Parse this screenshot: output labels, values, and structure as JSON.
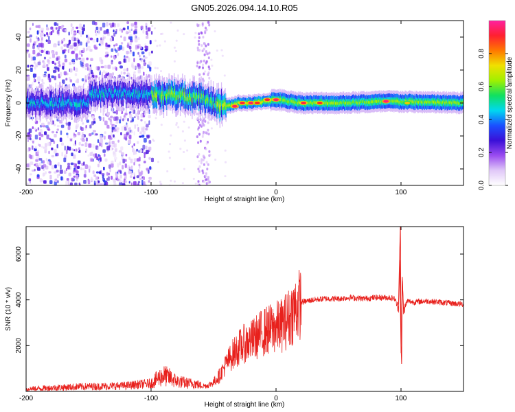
{
  "figure_title": "GN05.2026.094.14.10.R05",
  "colors": {
    "snr_line": "#e8201c",
    "ridge_low": "#3a10d8",
    "ridge_high": "#1fd890"
  },
  "chart_data": [
    {
      "type": "heatmap",
      "name": "spectrogram",
      "xlabel": "Height of straight line (km)",
      "ylabel": "Frequency (Hz)",
      "xlim": [
        -200,
        150
      ],
      "ylim": [
        -50,
        50
      ],
      "xticks": [
        -200,
        -100,
        0,
        100
      ],
      "yticks": [
        -40,
        -20,
        0,
        20,
        40
      ],
      "colorbar": {
        "label": "Normalized spectral amplitude",
        "range": [
          0.0,
          1.0
        ],
        "ticks": [
          0.0,
          0.2,
          0.4,
          0.6,
          0.8
        ],
        "tick_labels": [
          "0.0",
          "0.2",
          "0.4",
          "0.6",
          "0.8"
        ],
        "stops": [
          "#ffffff",
          "#e0c8f8",
          "#9a4cf0",
          "#3a10d8",
          "#1a50ff",
          "#00d8f0",
          "#10e060",
          "#a0f000",
          "#f0e000",
          "#ff7800",
          "#ff2030",
          "#ff20a0"
        ]
      },
      "ridge_center": [
        {
          "x": -150,
          "f": 6
        },
        {
          "x": -120,
          "f": 6
        },
        {
          "x": -100,
          "f": 5
        },
        {
          "x": -80,
          "f": 5
        },
        {
          "x": -60,
          "f": 3
        },
        {
          "x": -50,
          "f": 0
        },
        {
          "x": -40,
          "f": -2
        },
        {
          "x": -30,
          "f": 0
        },
        {
          "x": -20,
          "f": 0
        },
        {
          "x": -10,
          "f": 1
        },
        {
          "x": 0,
          "f": 2
        },
        {
          "x": 20,
          "f": 0
        },
        {
          "x": 50,
          "f": 0
        },
        {
          "x": 90,
          "f": 1
        },
        {
          "x": 150,
          "f": 0
        }
      ],
      "hotspots": [
        {
          "x": -33,
          "f": -2,
          "v": 0.95
        },
        {
          "x": -27,
          "f": 0,
          "v": 0.92
        },
        {
          "x": -20,
          "f": 0,
          "v": 0.95
        },
        {
          "x": -15,
          "f": 0,
          "v": 0.9
        },
        {
          "x": -7,
          "f": 2,
          "v": 0.92
        },
        {
          "x": 0,
          "f": 2,
          "v": 0.96
        },
        {
          "x": 22,
          "f": 0,
          "v": 0.93
        },
        {
          "x": 35,
          "f": 0,
          "v": 0.9
        },
        {
          "x": 88,
          "f": 1,
          "v": 0.97
        },
        {
          "x": 105,
          "f": 0,
          "v": 0.75
        }
      ]
    },
    {
      "type": "line",
      "name": "snr",
      "xlabel": "Height of straight line (km)",
      "ylabel": "SNR (10 * v/v)",
      "xlim": [
        -200,
        150
      ],
      "ylim": [
        0,
        7200
      ],
      "xticks": [
        -200,
        -100,
        0,
        100
      ],
      "yticks": [
        2000,
        4000,
        6000
      ],
      "series": [
        {
          "name": "SNR",
          "x": [
            -200,
            -180,
            -160,
            -140,
            -120,
            -100,
            -95,
            -90,
            -85,
            -80,
            -75,
            -70,
            -65,
            -60,
            -55,
            -50,
            -45,
            -40,
            -35,
            -30,
            -25,
            -20,
            -15,
            -10,
            -5,
            0,
            5,
            10,
            15,
            20,
            30,
            40,
            50,
            60,
            70,
            80,
            90,
            95,
            98,
            99,
            100,
            101,
            102,
            105,
            110,
            120,
            130,
            140,
            150
          ],
          "y": [
            100,
            150,
            200,
            220,
            250,
            350,
            550,
            700,
            600,
            450,
            400,
            350,
            350,
            250,
            250,
            400,
            700,
            1200,
            1600,
            1900,
            2100,
            2200,
            2400,
            2600,
            2700,
            2800,
            2900,
            3200,
            3600,
            3900,
            4000,
            4050,
            4050,
            4100,
            4050,
            4100,
            4100,
            4050,
            3600,
            5800,
            1600,
            5000,
            3500,
            3950,
            3900,
            3950,
            3900,
            3850,
            3800
          ]
        }
      ]
    }
  ]
}
